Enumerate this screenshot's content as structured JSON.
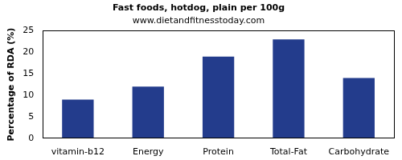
{
  "chart_data": {
    "type": "bar",
    "title": "Fast foods, hotdog, plain per 100g",
    "subtitle": "www.dietandfitnesstoday.com",
    "y_label": "Percentage of RDA (%)",
    "categories": [
      "vitamin-b12",
      "Energy",
      "Protein",
      "Total-Fat",
      "Carbohydrate"
    ],
    "values": [
      9,
      12,
      19,
      23,
      14
    ],
    "color": "#233c8c",
    "ylim": [
      0,
      25
    ],
    "yticks": [
      0,
      5,
      10,
      15,
      20,
      25
    ],
    "grid": false
  }
}
